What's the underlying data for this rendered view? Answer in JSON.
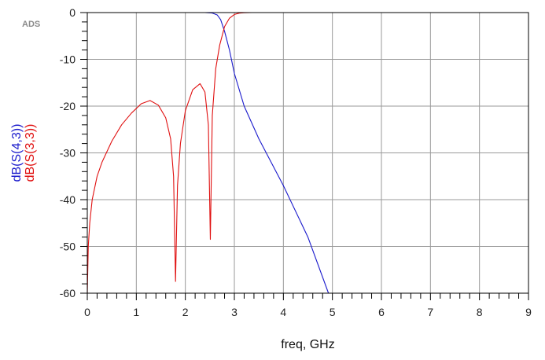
{
  "badge": "ADS",
  "chart_data": {
    "type": "line",
    "xlabel": "freq, GHz",
    "ylabels": [
      {
        "text": "dB(S(4,3))",
        "color": "#1a1acc"
      },
      {
        "text": "dB(S(3,3))",
        "color": "#e01010"
      }
    ],
    "xlim": [
      0,
      9
    ],
    "ylim": [
      -60,
      0
    ],
    "xticks": [
      0,
      1,
      2,
      3,
      4,
      5,
      6,
      7,
      8,
      9
    ],
    "yticks": [
      0,
      -10,
      -20,
      -30,
      -40,
      -50,
      -60
    ],
    "grid": true,
    "series": [
      {
        "name": "dB(S(4,3))",
        "color": "#1a1acc",
        "x": [
          0,
          0.5,
          1.0,
          1.5,
          2.0,
          2.4,
          2.55,
          2.65,
          2.72,
          2.8,
          2.9,
          3.0,
          3.2,
          3.5,
          4.0,
          4.5,
          4.92
        ],
        "y": [
          0,
          0,
          0,
          0,
          0,
          0,
          -0.1,
          -0.5,
          -1.5,
          -4,
          -8,
          -13,
          -20,
          -27,
          -37,
          -48,
          -60
        ]
      },
      {
        "name": "dB(S(3,3))",
        "color": "#e01010",
        "x": [
          0.0,
          0.02,
          0.05,
          0.1,
          0.2,
          0.3,
          0.5,
          0.7,
          0.9,
          1.1,
          1.28,
          1.45,
          1.6,
          1.7,
          1.76,
          1.8,
          1.84,
          1.9,
          2.0,
          2.15,
          2.3,
          2.4,
          2.47,
          2.51,
          2.55,
          2.62,
          2.7,
          2.8,
          2.9,
          3.0,
          3.1,
          3.2,
          3.35,
          4.0,
          9.0
        ],
        "y": [
          -60,
          -50,
          -45,
          -40,
          -35,
          -32,
          -27.5,
          -24,
          -21.5,
          -19.5,
          -18.8,
          -19.8,
          -22.5,
          -27,
          -35,
          -57.5,
          -37,
          -28,
          -21,
          -16.5,
          -15.2,
          -17,
          -24,
          -48.5,
          -22,
          -12,
          -7,
          -3,
          -1.2,
          -0.4,
          -0.12,
          -0.03,
          0,
          0,
          0
        ]
      }
    ]
  }
}
